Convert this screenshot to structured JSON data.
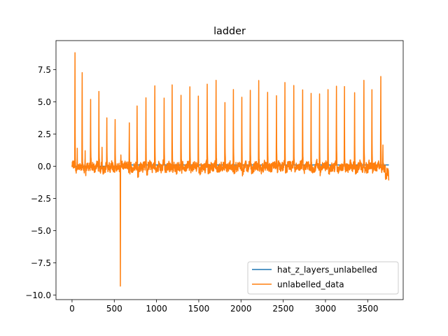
{
  "chart_data": {
    "type": "line",
    "title": "ladder",
    "xlabel": "",
    "ylabel": "",
    "xlim": [
      -190,
      3920
    ],
    "ylim": [
      -10.35,
      9.75
    ],
    "xticks": [
      0,
      500,
      1000,
      1500,
      2000,
      2500,
      3000,
      3500
    ],
    "xtick_labels": [
      "0",
      "500",
      "1000",
      "1500",
      "2000",
      "2500",
      "3000",
      "3500"
    ],
    "yticks": [
      -10.0,
      -7.5,
      -5.0,
      -2.5,
      0.0,
      2.5,
      5.0,
      7.5
    ],
    "ytick_labels": [
      "−10.0",
      "−7.5",
      "−5.0",
      "−2.5",
      "0.0",
      "2.5",
      "5.0",
      "7.5"
    ],
    "grid": false,
    "legend_position": "lower-right",
    "n_points": 3750,
    "baseline": {
      "x": [
        0,
        550,
        600,
        3750
      ],
      "y": [
        0.0,
        0.0,
        0.1,
        0.1
      ]
    },
    "peaks": [
      {
        "x": 35,
        "y": 9.0
      },
      {
        "x": 62,
        "y": 1.6
      },
      {
        "x": 120,
        "y": 6.9
      },
      {
        "x": 155,
        "y": 1.3
      },
      {
        "x": 220,
        "y": 5.5
      },
      {
        "x": 318,
        "y": 5.7
      },
      {
        "x": 355,
        "y": 1.3
      },
      {
        "x": 412,
        "y": 3.7
      },
      {
        "x": 510,
        "y": 3.5
      },
      {
        "x": 578,
        "y": 0.8
      },
      {
        "x": 678,
        "y": 3.3
      },
      {
        "x": 770,
        "y": 4.6
      },
      {
        "x": 875,
        "y": 5.7
      },
      {
        "x": 980,
        "y": 6.0
      },
      {
        "x": 1090,
        "y": 5.4
      },
      {
        "x": 1185,
        "y": 6.3
      },
      {
        "x": 1290,
        "y": 5.7
      },
      {
        "x": 1395,
        "y": 6.2
      },
      {
        "x": 1495,
        "y": 5.6
      },
      {
        "x": 1600,
        "y": 6.1
      },
      {
        "x": 1705,
        "y": 6.4
      },
      {
        "x": 1810,
        "y": 4.9
      },
      {
        "x": 1910,
        "y": 6.0
      },
      {
        "x": 2010,
        "y": 5.7
      },
      {
        "x": 2110,
        "y": 5.7
      },
      {
        "x": 2210,
        "y": 6.3
      },
      {
        "x": 2315,
        "y": 5.7
      },
      {
        "x": 2420,
        "y": 5.6
      },
      {
        "x": 2520,
        "y": 6.4
      },
      {
        "x": 2625,
        "y": 6.1
      },
      {
        "x": 2730,
        "y": 5.7
      },
      {
        "x": 2830,
        "y": 5.8
      },
      {
        "x": 2930,
        "y": 5.5
      },
      {
        "x": 3030,
        "y": 5.7
      },
      {
        "x": 3130,
        "y": 6.4
      },
      {
        "x": 3225,
        "y": 6.2
      },
      {
        "x": 3345,
        "y": 5.7
      },
      {
        "x": 3455,
        "y": 6.3
      },
      {
        "x": 3550,
        "y": 6.3
      },
      {
        "x": 3655,
        "y": 7.1
      },
      {
        "x": 3680,
        "y": 1.8
      }
    ],
    "dips": [
      {
        "x": 572,
        "y": -9.2
      }
    ],
    "series": [
      {
        "name": "hat_z_layers_unlabelled",
        "color": "#1f77b4"
      },
      {
        "name": "unlabelled_data",
        "color": "#ff7f0e"
      }
    ]
  }
}
